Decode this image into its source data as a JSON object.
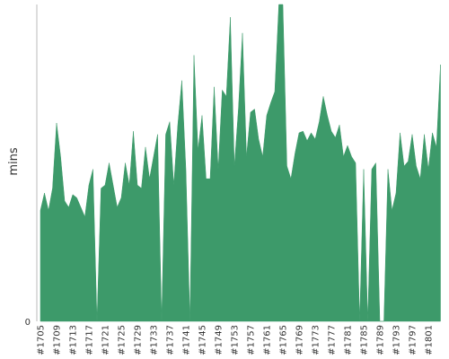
{
  "chart_data": {
    "type": "area",
    "y_label": "mins",
    "color": "#3d9a6a",
    "categories": [
      "#1705",
      null,
      null,
      null,
      "#1709",
      null,
      null,
      null,
      "#1713",
      null,
      null,
      null,
      "#1717",
      null,
      null,
      null,
      "#1721",
      null,
      null,
      null,
      "#1725",
      null,
      null,
      null,
      "#1729",
      null,
      null,
      null,
      "#1733",
      null,
      null,
      null,
      "#1737",
      null,
      null,
      null,
      "#1741",
      null,
      null,
      null,
      "#1745",
      null,
      null,
      null,
      "#1749",
      null,
      null,
      null,
      "#1753",
      null,
      null,
      null,
      "#1757",
      null,
      null,
      null,
      "#1761",
      null,
      null,
      null,
      "#1765",
      null,
      null,
      null,
      "#1769",
      null,
      null,
      null,
      "#1773",
      null,
      null,
      null,
      "#1777",
      null,
      null,
      null,
      "#1781",
      null,
      null,
      null,
      "#1785",
      null,
      null,
      null,
      "#1789",
      null,
      null,
      null,
      "#1793",
      null,
      null,
      null,
      "#1797",
      null,
      null,
      null,
      "#1801",
      null,
      null,
      null
    ],
    "values": [
      35,
      40.5,
      35,
      42,
      62.6,
      52,
      38,
      36,
      40,
      39,
      36,
      33,
      43,
      48,
      0,
      42,
      43,
      50,
      43,
      36,
      39,
      50,
      43,
      60,
      43,
      42,
      55,
      45,
      52,
      59,
      0,
      59,
      63,
      43,
      62,
      76,
      48,
      0,
      84,
      54,
      65,
      45,
      45,
      74,
      48,
      73,
      71,
      96,
      49,
      67,
      91,
      52,
      66,
      67,
      57.5,
      52,
      65,
      69,
      72.5,
      100,
      100,
      49,
      45,
      53,
      59.5,
      60,
      57,
      59.5,
      57.5,
      63,
      71,
      65,
      60,
      58,
      62,
      52,
      55.5,
      52,
      50,
      0,
      48,
      0,
      48,
      50,
      0,
      0,
      48,
      35,
      40.5,
      59.5,
      49,
      50.5,
      59,
      49,
      45,
      59,
      48,
      59.5,
      55,
      81
    ],
    "ylim": [
      0,
      100
    ],
    "yticks": [
      0
    ]
  }
}
